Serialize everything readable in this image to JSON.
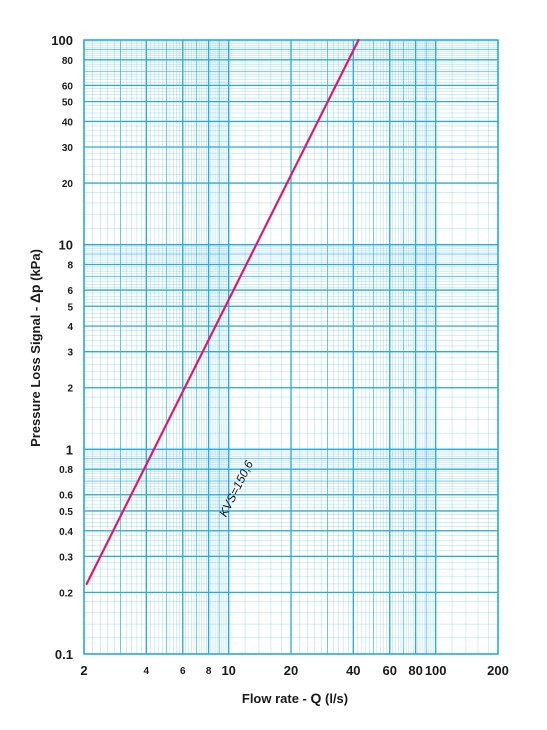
{
  "chart_data": {
    "type": "line",
    "xlabel_main": "Flow rate - ",
    "xlabel_var": "Q",
    "xlabel_unit": " (l/s)",
    "ylabel_main": "Pressure Loss Signal  - ",
    "ylabel_var": "Δp",
    "ylabel_unit": " (kPa)",
    "xscale": "log",
    "yscale": "log",
    "xlim": [
      2,
      200
    ],
    "ylim": [
      0.1,
      100
    ],
    "grid": true,
    "colors": {
      "grid": "#29abe2",
      "curve": "#e0186e",
      "text": "#1a1a1a"
    },
    "x_ticks": [
      {
        "value": 2,
        "label": "2",
        "size": "large"
      },
      {
        "value": 4,
        "label": "4",
        "size": "small"
      },
      {
        "value": 6,
        "label": "6",
        "size": "small"
      },
      {
        "value": 8,
        "label": "8",
        "size": "small"
      },
      {
        "value": 10,
        "label": "10",
        "size": "large"
      },
      {
        "value": 20,
        "label": "20",
        "size": "large"
      },
      {
        "value": 40,
        "label": "40",
        "size": "large"
      },
      {
        "value": 60,
        "label": "60",
        "size": "large"
      },
      {
        "value": 80,
        "label": "80",
        "size": "large"
      },
      {
        "value": 100,
        "label": "100",
        "size": "large"
      },
      {
        "value": 200,
        "label": "200",
        "size": "large"
      }
    ],
    "y_ticks": [
      {
        "value": 100,
        "label": "100",
        "size": "large"
      },
      {
        "value": 80,
        "label": "80",
        "size": "small"
      },
      {
        "value": 60,
        "label": "60",
        "size": "small"
      },
      {
        "value": 50,
        "label": "50",
        "size": "small"
      },
      {
        "value": 40,
        "label": "40",
        "size": "small"
      },
      {
        "value": 30,
        "label": "30",
        "size": "small"
      },
      {
        "value": 20,
        "label": "20",
        "size": "small"
      },
      {
        "value": 10,
        "label": "10",
        "size": "large"
      },
      {
        "value": 8,
        "label": "8",
        "size": "small"
      },
      {
        "value": 6,
        "label": "6",
        "size": "small"
      },
      {
        "value": 5,
        "label": "5",
        "size": "small"
      },
      {
        "value": 4,
        "label": "4",
        "size": "small"
      },
      {
        "value": 3,
        "label": "3",
        "size": "small"
      },
      {
        "value": 2,
        "label": "2",
        "size": "small"
      },
      {
        "value": 1,
        "label": "1",
        "size": "large"
      },
      {
        "value": 0.8,
        "label": "0.8",
        "size": "small"
      },
      {
        "value": 0.6,
        "label": "0.6",
        "size": "small"
      },
      {
        "value": 0.5,
        "label": "0.5",
        "size": "small"
      },
      {
        "value": 0.4,
        "label": "0.4",
        "size": "small"
      },
      {
        "value": 0.3,
        "label": "0.3",
        "size": "small"
      },
      {
        "value": 0.2,
        "label": "0.2",
        "size": "small"
      },
      {
        "value": 0.1,
        "label": "0.1",
        "size": "large"
      }
    ],
    "series": [
      {
        "label": "KVS=150,6",
        "kvs": 150.6,
        "points": [
          {
            "x": 2.06,
            "y": 0.22
          },
          {
            "x": 42.4,
            "y": 100
          }
        ]
      }
    ]
  }
}
